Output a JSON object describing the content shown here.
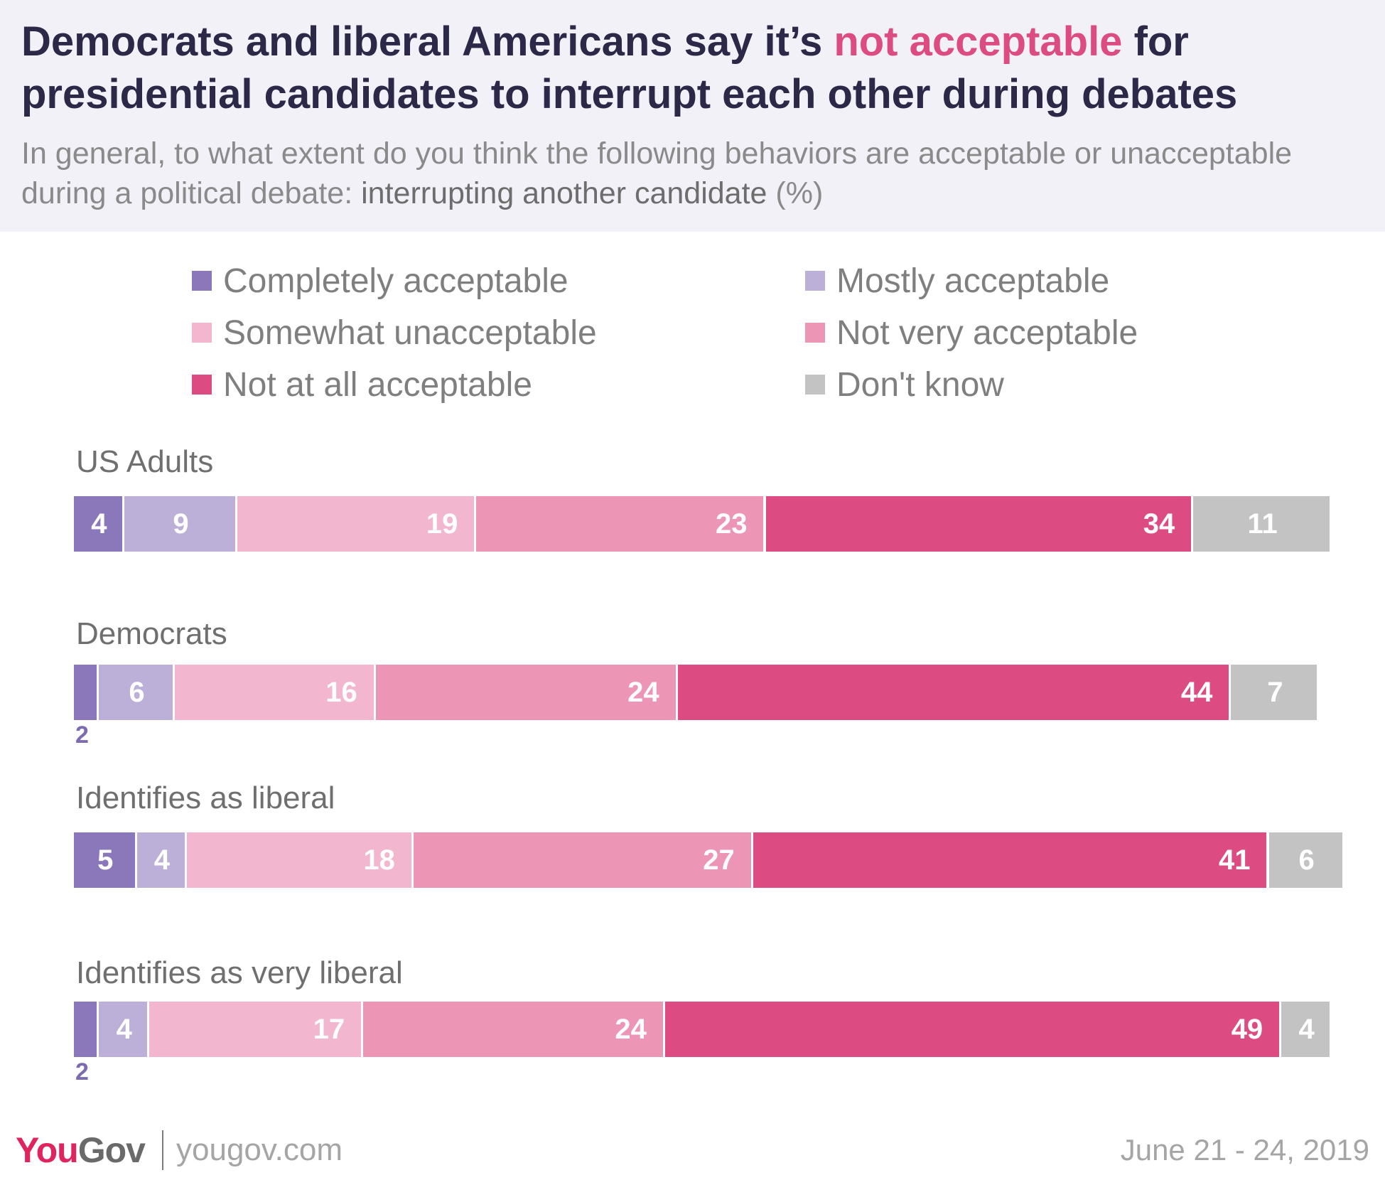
{
  "header": {
    "title_part1": "Democrats and liberal Americans say it’s ",
    "title_highlight": "not acceptable",
    "title_part2": " for presidential candidates to interrupt each other during debates",
    "subtitle_part1": "In general, to what extent do you think the following behaviors are acceptable or unacceptable during a political debate: ",
    "subtitle_emphasis": "interrupting another candidate",
    "subtitle_part2": " (%)"
  },
  "colors": {
    "completely_acceptable": "#8b78bb",
    "mostly_acceptable": "#bdb0d8",
    "somewhat_unacceptable": "#f2b6ce",
    "not_very_acceptable": "#ed95b5",
    "not_at_all_acceptable": "#dd4b83",
    "dont_know": "#c3c3c3",
    "highlight": "#dd4b83",
    "title": "#2b2848"
  },
  "chart_data": {
    "type": "bar",
    "orientation": "horizontal",
    "stacked": true,
    "unit": "%",
    "legend_position": "top",
    "categories": [
      "US Adults",
      "Democrats",
      "Identifies as liberal",
      "Identifies as very liberal"
    ],
    "series": [
      {
        "name": "Completely acceptable",
        "color": "#8b78bb",
        "values": [
          4,
          2,
          5,
          2
        ]
      },
      {
        "name": "Mostly acceptable",
        "color": "#bdb0d8",
        "values": [
          9,
          6,
          4,
          4
        ]
      },
      {
        "name": "Somewhat unacceptable",
        "color": "#f2b6ce",
        "values": [
          19,
          16,
          18,
          17
        ]
      },
      {
        "name": "Not very acceptable",
        "color": "#ed95b5",
        "values": [
          23,
          24,
          27,
          24
        ]
      },
      {
        "name": "Not at all acceptable",
        "color": "#dd4b83",
        "values": [
          34,
          44,
          41,
          49
        ]
      },
      {
        "name": "Don't know",
        "color": "#c3c3c3",
        "values": [
          11,
          7,
          6,
          4
        ]
      }
    ]
  },
  "footer": {
    "logo_you": "You",
    "logo_gov": "Gov",
    "site": "yougov.com",
    "date": "June 21 - 24, 2019"
  }
}
